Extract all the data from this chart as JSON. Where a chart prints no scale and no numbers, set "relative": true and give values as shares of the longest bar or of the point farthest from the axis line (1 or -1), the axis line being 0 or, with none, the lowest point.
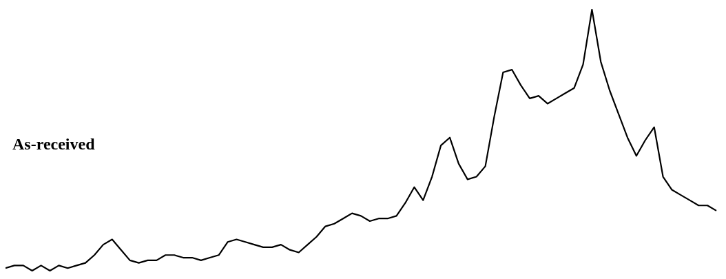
{
  "chart_data": {
    "type": "line",
    "relative": true,
    "legend": false,
    "marker": "none",
    "annotations": [
      "As-received"
    ],
    "categories": [
      null,
      null,
      null,
      null,
      null,
      null,
      null,
      null,
      null,
      null,
      null,
      null,
      null,
      null,
      null,
      null,
      null,
      null,
      null,
      null,
      null,
      null,
      null,
      null,
      null,
      null,
      null,
      null,
      null,
      null,
      null,
      null,
      null,
      null,
      null,
      null,
      null,
      null,
      null,
      null,
      null,
      null,
      null,
      null,
      null,
      null,
      null,
      null,
      null,
      null,
      null,
      null,
      null,
      null,
      null,
      null,
      null,
      null,
      null,
      null,
      null,
      null,
      null,
      null,
      null,
      null,
      null,
      null,
      null,
      null,
      null,
      null,
      null,
      null,
      null,
      null,
      null,
      null,
      null,
      null,
      null
    ],
    "series": [
      {
        "color": "#000000",
        "values": [
          0.01,
          0.02,
          0.02,
          0.0,
          0.02,
          0,
          0.02,
          0.01,
          0.02,
          0.03,
          0.06,
          0.1,
          0.12,
          0.08,
          0.04,
          0.03,
          0.04,
          0.04,
          0.06,
          0.06,
          0.05,
          0.05,
          0.04,
          0.05,
          0.06,
          0.11,
          0.12,
          0.11,
          0.1,
          0.09,
          0.09,
          0.1,
          0.08,
          0.07,
          0.1,
          0.13,
          0.17,
          0.18,
          0.2,
          0.22,
          0.21,
          0.19,
          0.2,
          0.2,
          0.21,
          0.26,
          0.32,
          0.27,
          0.36,
          0.48,
          0.51,
          0.41,
          0.35,
          0.36,
          0.4,
          0.59,
          0.76,
          0.77,
          0.71,
          0.66,
          0.67,
          0.64,
          0.66,
          0.68,
          0.7,
          0.79,
          1,
          0.8,
          0.69,
          0.6,
          0.51,
          0.44,
          0.5,
          0.55,
          0.36,
          0.31,
          0.29,
          0.27,
          0.25,
          0.25,
          0.23
        ]
      }
    ]
  }
}
